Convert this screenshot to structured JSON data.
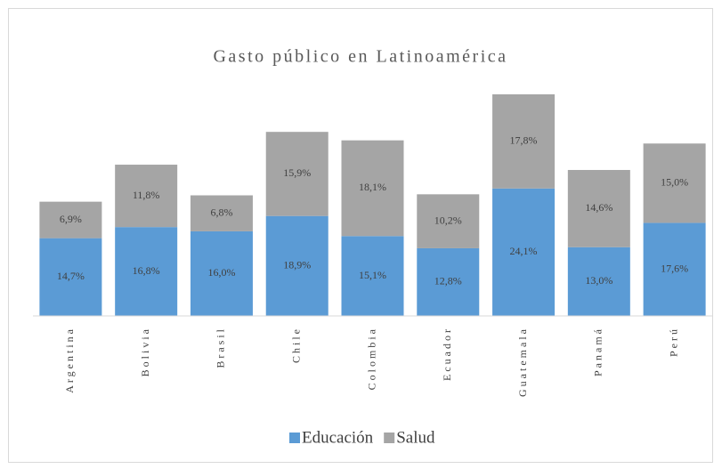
{
  "chart_data": {
    "type": "stacked_bar",
    "title": "Gasto público en Latinoamérica",
    "categories": [
      "Argentina",
      "Bolivia",
      "Brasil",
      "Chile",
      "Colombia",
      "Ecuador",
      "Guatemala",
      "Panamá",
      "Perú"
    ],
    "series": [
      {
        "name": "Educación",
        "color": "#5b9bd5",
        "values": [
          14.7,
          16.8,
          16.0,
          18.9,
          15.1,
          12.8,
          24.1,
          13.0,
          17.6
        ],
        "value_labels": [
          "14,7%",
          "16,8%",
          "16,0%",
          "18,9%",
          "15,1%",
          "12,8%",
          "24,1%",
          "13,0%",
          "17,6%"
        ]
      },
      {
        "name": "Salud",
        "color": "#a5a5a5",
        "values": [
          6.9,
          11.8,
          6.8,
          15.9,
          18.1,
          10.2,
          17.8,
          14.6,
          15.0
        ],
        "value_labels": [
          "6,9%",
          "11,8%",
          "6,8%",
          "15,9%",
          "18,1%",
          "10,2%",
          "17,8%",
          "14,6%",
          "15,0%"
        ]
      }
    ],
    "legend": "bottom"
  }
}
